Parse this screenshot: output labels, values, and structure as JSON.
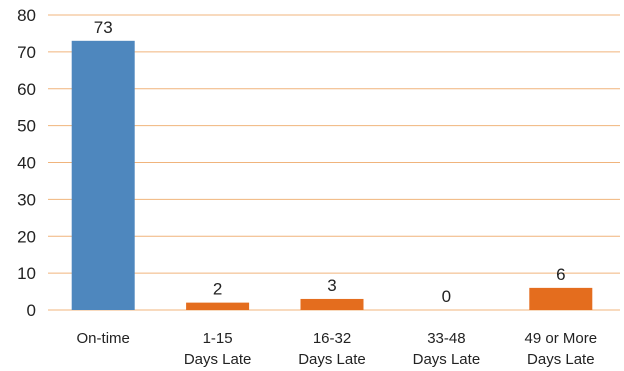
{
  "chart_data": {
    "type": "bar",
    "categories": [
      [
        "On-time"
      ],
      [
        "1-15",
        "Days Late"
      ],
      [
        "16-32",
        "Days Late"
      ],
      [
        "33-48",
        "Days Late"
      ],
      [
        "49 or More",
        "Days Late"
      ]
    ],
    "values": [
      73,
      2,
      3,
      0,
      6
    ],
    "data_labels": [
      "73",
      "2",
      "3",
      "0",
      "6"
    ],
    "colors": [
      "#4e87be",
      "#e46d1e",
      "#e46d1e",
      "#e46d1e",
      "#e46d1e"
    ],
    "ylim": [
      0,
      80
    ],
    "yticks": [
      "0",
      "10",
      "20",
      "30",
      "40",
      "50",
      "60",
      "70",
      "80"
    ],
    "gridline_color": "#f0b47c",
    "grid": true,
    "title": "",
    "xlabel": "",
    "ylabel": ""
  }
}
